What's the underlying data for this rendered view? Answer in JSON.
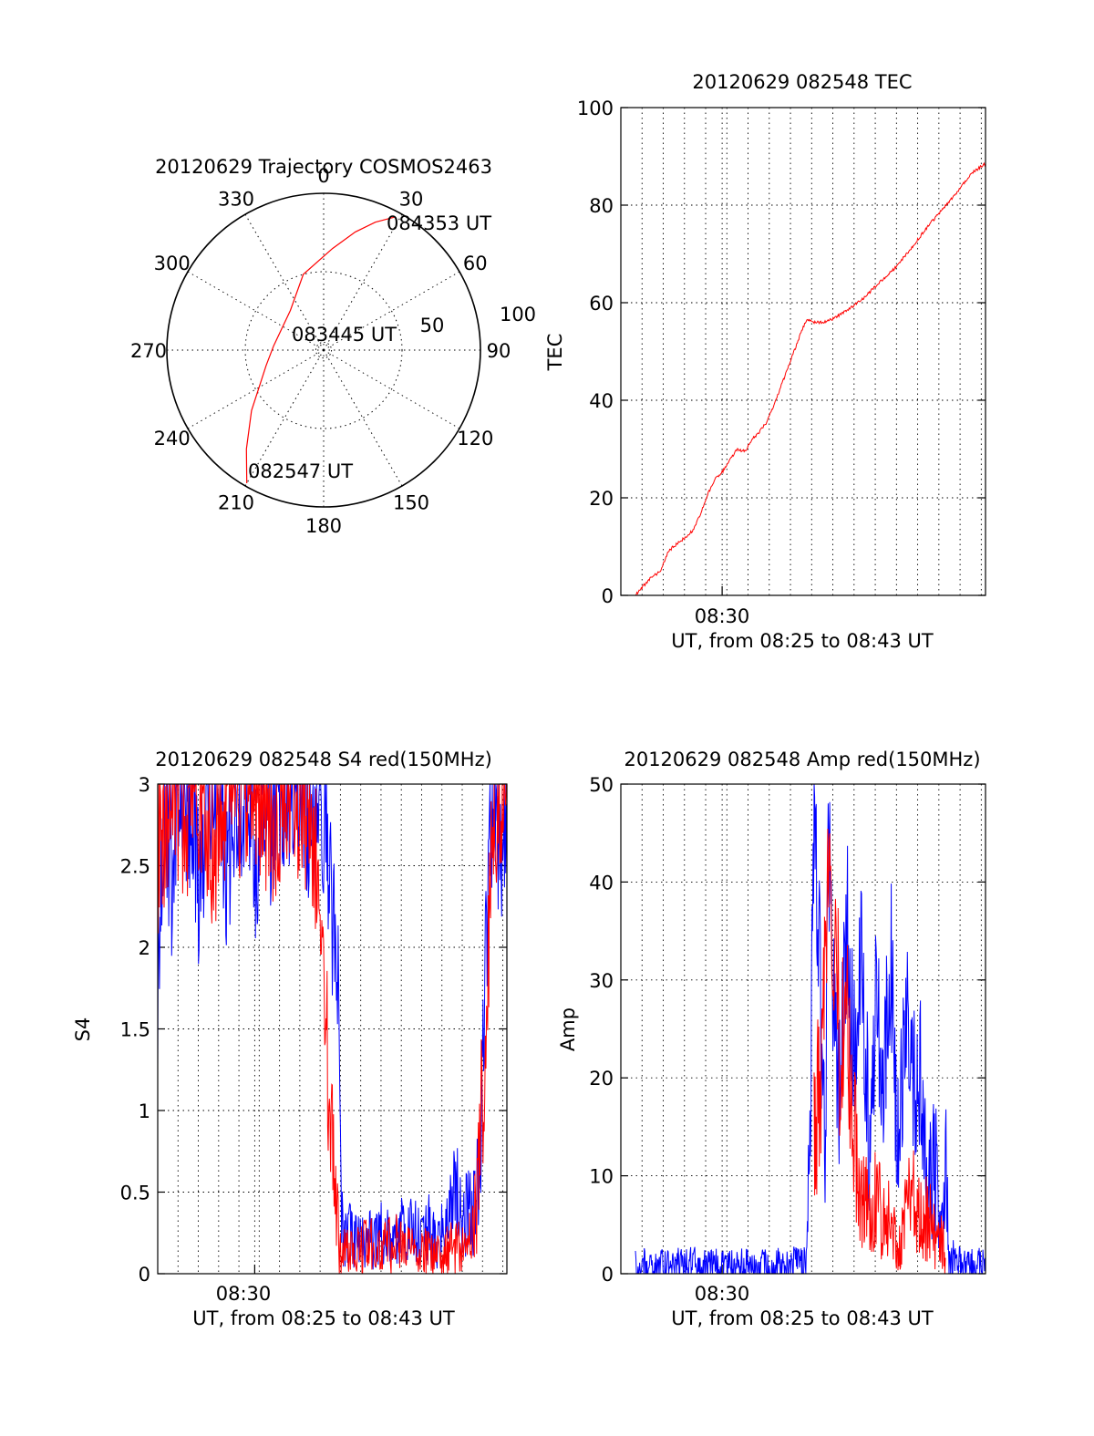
{
  "colors": {
    "red_series": "#ff0000",
    "blue_series": "#0000ff",
    "axis": "#000000",
    "grid": "#000000"
  },
  "chart_data": [
    {
      "id": "trajectory",
      "type": "polar",
      "title": "20120629 Trajectory COSMOS2463",
      "angle_labels": [
        "0",
        "30",
        "60",
        "90",
        "120",
        "150",
        "180",
        "210",
        "240",
        "270",
        "300",
        "330"
      ],
      "ring_labels": [
        "50",
        "100"
      ],
      "grid": true,
      "annotations": [
        "084353 UT",
        "083445 UT",
        "082547 UT"
      ],
      "series": [
        {
          "color": "red",
          "points": [
            [
              210,
              98
            ],
            [
              218,
              80
            ],
            [
              230,
              60
            ],
            [
              255,
              38
            ],
            [
              275,
              32
            ],
            [
              320,
              33
            ],
            [
              345,
              50
            ],
            [
              5,
              65
            ],
            [
              15,
              78
            ],
            [
              22,
              88
            ],
            [
              28,
              96
            ]
          ]
        }
      ]
    },
    {
      "id": "tec",
      "type": "line",
      "title": "20120629 082548 TEC",
      "ylabel": "TEC",
      "xlabel": "UT, from 08:25 to 08:43 UT",
      "x_tick_labels": [
        "08:30"
      ],
      "ylim": [
        0,
        100
      ],
      "y_ticks": [
        "0",
        "20",
        "40",
        "60",
        "80",
        "100"
      ],
      "grid": true,
      "series": [
        {
          "color": "red",
          "points": [
            [
              0.04,
              0
            ],
            [
              0.08,
              3.5
            ],
            [
              0.11,
              5
            ],
            [
              0.13,
              9
            ],
            [
              0.16,
              11
            ],
            [
              0.18,
              12
            ],
            [
              0.2,
              13.5
            ],
            [
              0.22,
              17
            ],
            [
              0.24,
              21
            ],
            [
              0.26,
              24
            ],
            [
              0.28,
              25.5
            ],
            [
              0.3,
              28
            ],
            [
              0.32,
              30
            ],
            [
              0.34,
              29.5
            ],
            [
              0.36,
              32
            ],
            [
              0.38,
              33.5
            ],
            [
              0.4,
              35.5
            ],
            [
              0.42,
              39
            ],
            [
              0.44,
              43
            ],
            [
              0.46,
              47
            ],
            [
              0.48,
              51
            ],
            [
              0.5,
              55
            ],
            [
              0.51,
              56.5
            ],
            [
              0.53,
              56
            ],
            [
              0.56,
              56
            ],
            [
              0.59,
              57
            ],
            [
              0.62,
              58.5
            ],
            [
              0.66,
              60.5
            ],
            [
              0.7,
              63.5
            ],
            [
              0.75,
              67
            ],
            [
              0.8,
              71.5
            ],
            [
              0.84,
              75.5
            ],
            [
              0.88,
              79
            ],
            [
              0.91,
              81.5
            ],
            [
              0.93,
              83.5
            ],
            [
              0.96,
              86.5
            ],
            [
              1.0,
              88.5
            ]
          ]
        }
      ]
    },
    {
      "id": "s4",
      "type": "line",
      "title": "20120629 082548 S4 red(150MHz)",
      "ylabel": "S4",
      "xlabel": "UT, from 08:25 to 08:43 UT",
      "x_tick_labels": [
        "08:30"
      ],
      "ylim": [
        0,
        3
      ],
      "y_ticks": [
        "0",
        "0.5",
        "1",
        "1.5",
        "2",
        "2.5",
        "3"
      ],
      "grid": true,
      "series": [
        {
          "color": "blue",
          "points": [
            [
              0.0,
              1.8
            ],
            [
              0.02,
              3.0
            ],
            [
              0.04,
              2.4
            ],
            [
              0.06,
              3.0
            ],
            [
              0.08,
              2.6
            ],
            [
              0.1,
              3.0
            ],
            [
              0.12,
              2.2
            ],
            [
              0.14,
              3.0
            ],
            [
              0.16,
              2.7
            ],
            [
              0.18,
              3.0
            ],
            [
              0.2,
              2.4
            ],
            [
              0.22,
              3.0
            ],
            [
              0.24,
              2.8
            ],
            [
              0.26,
              3.0
            ],
            [
              0.28,
              2.5
            ],
            [
              0.3,
              3.0
            ],
            [
              0.32,
              2.6
            ],
            [
              0.34,
              3.0
            ],
            [
              0.36,
              2.8
            ],
            [
              0.38,
              3.0
            ],
            [
              0.4,
              2.9
            ],
            [
              0.42,
              3.0
            ],
            [
              0.44,
              2.6
            ],
            [
              0.46,
              3.0
            ],
            [
              0.48,
              2.7
            ],
            [
              0.5,
              2.2
            ],
            [
              0.52,
              1.5
            ],
            [
              0.53,
              0.2
            ],
            [
              0.56,
              0.25
            ],
            [
              0.6,
              0.2
            ],
            [
              0.64,
              0.25
            ],
            [
              0.68,
              0.22
            ],
            [
              0.72,
              0.28
            ],
            [
              0.76,
              0.2
            ],
            [
              0.78,
              0.3
            ],
            [
              0.8,
              0.2
            ],
            [
              0.84,
              0.35
            ],
            [
              0.86,
              0.55
            ],
            [
              0.88,
              0.4
            ],
            [
              0.9,
              0.35
            ],
            [
              0.92,
              0.6
            ],
            [
              0.94,
              1.9
            ],
            [
              0.96,
              3.0
            ],
            [
              0.98,
              2.6
            ],
            [
              1.0,
              3.0
            ]
          ]
        },
        {
          "color": "red",
          "points": [
            [
              0.0,
              2.5
            ],
            [
              0.04,
              3.0
            ],
            [
              0.08,
              2.8
            ],
            [
              0.12,
              3.0
            ],
            [
              0.16,
              2.6
            ],
            [
              0.2,
              3.0
            ],
            [
              0.24,
              2.9
            ],
            [
              0.28,
              3.0
            ],
            [
              0.32,
              2.7
            ],
            [
              0.36,
              3.0
            ],
            [
              0.4,
              2.9
            ],
            [
              0.44,
              2.8
            ],
            [
              0.46,
              2.3
            ],
            [
              0.48,
              1.5
            ],
            [
              0.5,
              0.9
            ],
            [
              0.52,
              0.15
            ],
            [
              0.56,
              0.12
            ],
            [
              0.6,
              0.18
            ],
            [
              0.64,
              0.15
            ],
            [
              0.68,
              0.2
            ],
            [
              0.72,
              0.15
            ],
            [
              0.76,
              0.14
            ],
            [
              0.8,
              0.12
            ],
            [
              0.84,
              0.15
            ],
            [
              0.88,
              0.18
            ],
            [
              0.9,
              0.2
            ],
            [
              0.92,
              0.6
            ],
            [
              0.94,
              1.6
            ],
            [
              0.96,
              2.8
            ],
            [
              1.0,
              3.0
            ]
          ]
        }
      ]
    },
    {
      "id": "amp",
      "type": "line",
      "title": "20120629 082548 Amp red(150MHz)",
      "ylabel": "Amp",
      "xlabel": "UT, from 08:25 to 08:43 UT",
      "x_tick_labels": [
        "08:30"
      ],
      "ylim": [
        0,
        50
      ],
      "y_ticks": [
        "0",
        "10",
        "20",
        "30",
        "40",
        "50"
      ],
      "grid": true,
      "series": [
        {
          "color": "blue",
          "points": [
            [
              0.04,
              0.8
            ],
            [
              0.2,
              0.9
            ],
            [
              0.4,
              0.8
            ],
            [
              0.51,
              1.0
            ],
            [
              0.52,
              20
            ],
            [
              0.53,
              48
            ],
            [
              0.54,
              38
            ],
            [
              0.55,
              25
            ],
            [
              0.56,
              10
            ],
            [
              0.57,
              45
            ],
            [
              0.58,
              32
            ],
            [
              0.6,
              18
            ],
            [
              0.62,
              36
            ],
            [
              0.64,
              22
            ],
            [
              0.66,
              33
            ],
            [
              0.68,
              14
            ],
            [
              0.7,
              28
            ],
            [
              0.72,
              20
            ],
            [
              0.74,
              34
            ],
            [
              0.76,
              12
            ],
            [
              0.78,
              28
            ],
            [
              0.8,
              18
            ],
            [
              0.82,
              21
            ],
            [
              0.84,
              8
            ],
            [
              0.86,
              12
            ],
            [
              0.88,
              5
            ],
            [
              0.89,
              12
            ],
            [
              0.9,
              2
            ],
            [
              0.92,
              1
            ],
            [
              0.96,
              0.8
            ],
            [
              1.0,
              0.9
            ]
          ]
        },
        {
          "color": "red",
          "points": [
            [
              0.53,
              15
            ],
            [
              0.55,
              20
            ],
            [
              0.56,
              35
            ],
            [
              0.57,
              42
            ],
            [
              0.58,
              28
            ],
            [
              0.59,
              38
            ],
            [
              0.6,
              22
            ],
            [
              0.62,
              30
            ],
            [
              0.63,
              18
            ],
            [
              0.65,
              10
            ],
            [
              0.66,
              8
            ],
            [
              0.68,
              6
            ],
            [
              0.7,
              8
            ],
            [
              0.72,
              5
            ],
            [
              0.74,
              7
            ],
            [
              0.75,
              4
            ],
            [
              0.76,
              2
            ],
            [
              0.78,
              6
            ],
            [
              0.8,
              8
            ],
            [
              0.82,
              5
            ],
            [
              0.84,
              6
            ],
            [
              0.86,
              4
            ],
            [
              0.88,
              3
            ],
            [
              0.89,
              2
            ]
          ]
        }
      ]
    }
  ]
}
